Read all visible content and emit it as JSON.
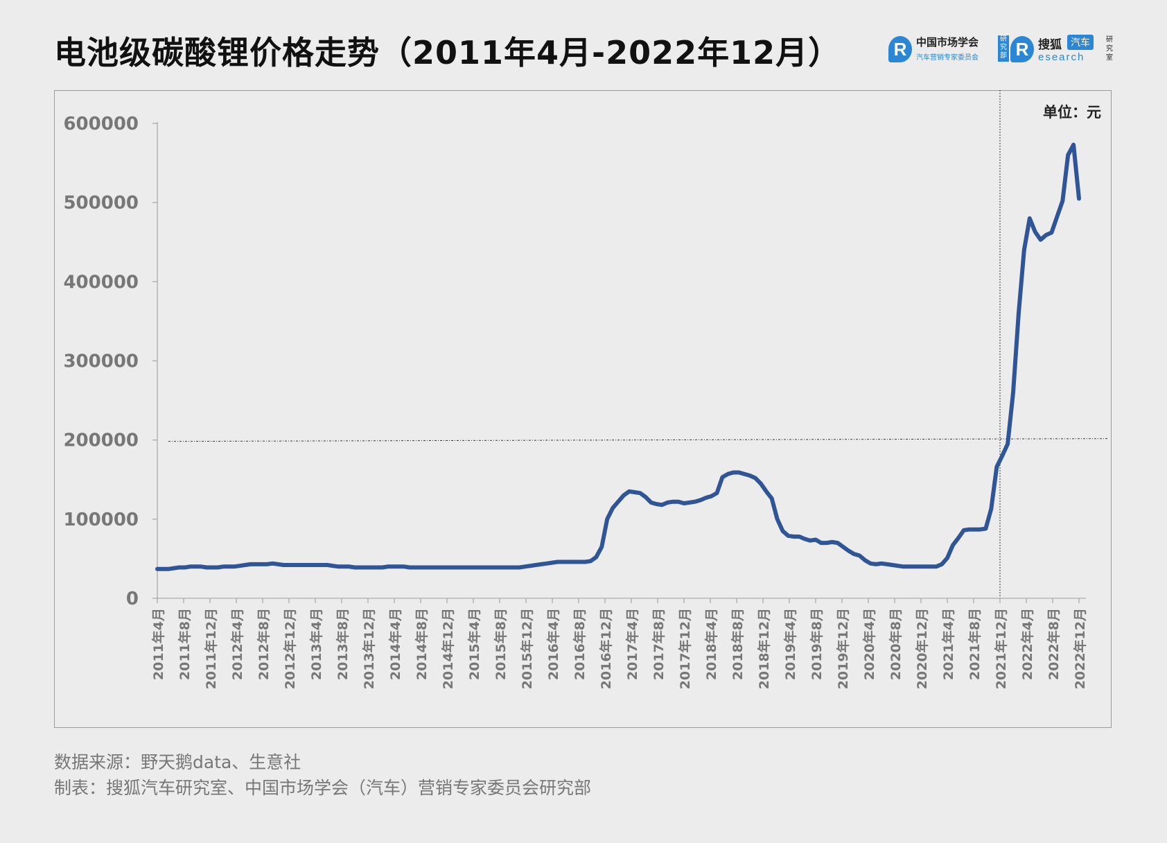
{
  "title": "电池级碳酸锂价格走势（2011年4月-2022年12月）",
  "logos": {
    "cma": {
      "name": "中国市场学会",
      "subtitle": "汽车营销专家委员会",
      "tag": "研究部"
    },
    "sohu": {
      "name": "搜狐",
      "badge": "汽车",
      "subtitle": "esearch",
      "tag": "研究室"
    }
  },
  "unit_label": "单位：元",
  "footer": {
    "source": "数据来源：野天鹅data、生意社",
    "maker": "制表：搜狐汽车研究室、中国市场学会（汽车）营销专家委员会研究部"
  },
  "colors": {
    "line": "#2f5597",
    "axis": "#aaaaaa",
    "tick_label": "#777777",
    "reference": "#333333"
  },
  "chart_data": {
    "type": "line",
    "title": "电池级碳酸锂价格走势（2011年4月-2022年12月）",
    "unit": "单位：元",
    "ylim": [
      0,
      600000
    ],
    "yticks": [
      0,
      100000,
      200000,
      300000,
      400000,
      500000,
      600000
    ],
    "ytick_labels": [
      "0",
      "100000",
      "200000",
      "300000",
      "400000",
      "500000",
      "600000"
    ],
    "grid": false,
    "x_tick_labels": [
      "2011年4月",
      "2011年8月",
      "2011年12月",
      "2012年4月",
      "2012年8月",
      "2012年12月",
      "2013年4月",
      "2013年8月",
      "2013年12月",
      "2014年4月",
      "2014年8月",
      "2014年12月",
      "2015年4月",
      "2015年8月",
      "2015年12月",
      "2016年4月",
      "2016年8月",
      "2016年12月",
      "2017年4月",
      "2017年8月",
      "2017年12月",
      "2018年4月",
      "2018年8月",
      "2018年12月",
      "2019年4月",
      "2019年8月",
      "2019年12月",
      "2020年4月",
      "2020年8月",
      "2020年12月",
      "2021年4月",
      "2021年8月",
      "2021年12月",
      "2022年4月",
      "2022年8月",
      "2022年12月"
    ],
    "reference_lines": {
      "horizontal_value": 200000,
      "vertical_at": "2021年12月"
    },
    "series": [
      {
        "values": [
          37000,
          37000,
          37000,
          38000,
          39000,
          39000,
          40000,
          40000,
          40000,
          39000,
          39000,
          39000,
          40000,
          40000,
          40000,
          41000,
          42000,
          43000,
          43000,
          43000,
          43000,
          44000,
          43000,
          42000,
          42000,
          42000,
          42000,
          42000,
          42000,
          42000,
          42000,
          42000,
          41000,
          40000,
          40000,
          40000,
          39000,
          39000,
          39000,
          39000,
          39000,
          39000,
          40000,
          40000,
          40000,
          40000,
          39000,
          39000,
          39000,
          39000,
          39000,
          39000,
          39000,
          39000,
          39000,
          39000,
          39000,
          39000,
          39000,
          39000,
          39000,
          39000,
          39000,
          39000,
          39000,
          39000,
          39000,
          40000,
          41000,
          42000,
          43000,
          44000,
          45000,
          46000,
          46000,
          46000,
          46000,
          46000,
          46000,
          47000,
          52000,
          65000,
          100000,
          114000,
          122000,
          130000,
          135000,
          134000,
          133000,
          128000,
          121000,
          119000,
          118000,
          121000,
          122000,
          122000,
          120000,
          121000,
          122000,
          124000,
          127000,
          129000,
          133000,
          153000,
          157000,
          159000,
          159000,
          157000,
          155000,
          152000,
          145000,
          135000,
          126000,
          100000,
          85000,
          79000,
          78000,
          78000,
          75000,
          73000,
          74000,
          70000,
          70000,
          71000,
          70000,
          65000,
          60000,
          56000,
          54000,
          48000,
          44000,
          43000,
          44000,
          43000,
          42000,
          41000,
          40000,
          40000,
          40000,
          40000,
          40000,
          40000,
          40000,
          43000,
          51000,
          67000,
          76000,
          86000,
          87000,
          87000,
          87000,
          88000,
          113000,
          166000,
          180000,
          195000,
          260000,
          360000,
          440000,
          480000,
          463000,
          453000,
          459000,
          462000,
          482000,
          502000,
          560000,
          573000,
          505000
        ]
      }
    ]
  }
}
